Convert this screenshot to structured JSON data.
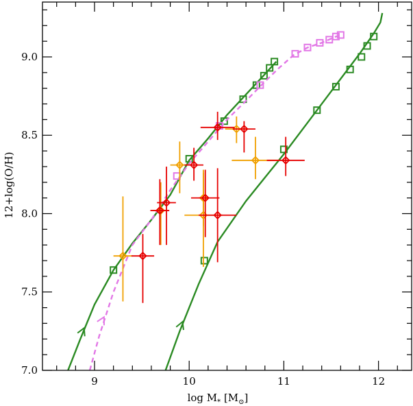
{
  "chart_data": {
    "type": "scatter",
    "title": "",
    "xlabel": "log M",
    "xlabel_sub": "*",
    "xlabel_units": "[M",
    "xlabel_units_close": "]",
    "ylabel": "12+log(O/H)",
    "xlim": [
      8.45,
      12.35
    ],
    "ylim": [
      7.0,
      9.35
    ],
    "grid": false,
    "xticks": [
      {
        "value": 9,
        "label": "9"
      },
      {
        "value": 10,
        "label": "10"
      },
      {
        "value": 11,
        "label": "11"
      },
      {
        "value": 12,
        "label": "12"
      }
    ],
    "yticks": [
      {
        "value": 7.0,
        "label": "7.0"
      },
      {
        "value": 7.5,
        "label": "7.5"
      },
      {
        "value": 8.0,
        "label": "8.0"
      },
      {
        "value": 8.5,
        "label": "8.5"
      },
      {
        "value": 9.0,
        "label": "9.0"
      }
    ],
    "colors": {
      "green": "#2a8a22",
      "violet": "#e277e6",
      "orange": "#f0a000",
      "red": "#e60000"
    },
    "tracks": [
      {
        "color": "green",
        "style": "solid",
        "curve": [
          [
            8.72,
            7.0
          ],
          [
            8.85,
            7.2
          ],
          [
            9.0,
            7.42
          ],
          [
            9.2,
            7.64
          ],
          [
            9.4,
            7.81
          ],
          [
            9.6,
            7.96
          ],
          [
            9.8,
            8.12
          ],
          [
            10.0,
            8.34
          ],
          [
            10.2,
            8.48
          ],
          [
            10.4,
            8.63
          ],
          [
            10.6,
            8.76
          ],
          [
            10.8,
            8.89
          ],
          [
            10.92,
            8.97
          ]
        ],
        "markers": [
          [
            9.2,
            7.64
          ],
          [
            10.0,
            8.35
          ],
          [
            10.37,
            8.59
          ],
          [
            10.57,
            8.73
          ],
          [
            10.71,
            8.82
          ],
          [
            10.79,
            8.88
          ],
          [
            10.85,
            8.93
          ],
          [
            10.9,
            8.97
          ]
        ],
        "arrow": {
          "at": [
            8.89,
            7.27
          ],
          "toward": [
            8.95,
            7.35
          ]
        }
      },
      {
        "color": "violet",
        "style": "dashed",
        "curve": [
          [
            8.95,
            7.0
          ],
          [
            9.05,
            7.22
          ],
          [
            9.2,
            7.5
          ],
          [
            9.4,
            7.8
          ],
          [
            9.6,
            7.96
          ],
          [
            9.8,
            8.15
          ],
          [
            10.0,
            8.32
          ],
          [
            10.2,
            8.46
          ],
          [
            10.4,
            8.6
          ],
          [
            10.6,
            8.72
          ],
          [
            10.78,
            8.83
          ],
          [
            10.95,
            8.93
          ],
          [
            11.1,
            9.01
          ],
          [
            11.25,
            9.06
          ],
          [
            11.4,
            9.09
          ],
          [
            11.55,
            9.13
          ],
          [
            11.62,
            9.14
          ]
        ],
        "markers": [
          [
            9.87,
            8.24
          ],
          [
            10.32,
            8.56
          ],
          [
            10.75,
            8.82
          ],
          [
            11.12,
            9.02
          ],
          [
            11.25,
            9.06
          ],
          [
            11.38,
            9.09
          ],
          [
            11.48,
            9.11
          ],
          [
            11.55,
            9.13
          ],
          [
            11.6,
            9.14
          ]
        ],
        "arrow": {
          "at": [
            9.1,
            7.34
          ],
          "toward": [
            9.17,
            7.42
          ]
        }
      },
      {
        "color": "green",
        "style": "solid",
        "curve": [
          [
            9.75,
            7.0
          ],
          [
            9.9,
            7.25
          ],
          [
            10.1,
            7.55
          ],
          [
            10.3,
            7.82
          ],
          [
            10.6,
            8.08
          ],
          [
            11.0,
            8.38
          ],
          [
            11.35,
            8.66
          ],
          [
            11.6,
            8.86
          ],
          [
            11.8,
            9.02
          ],
          [
            11.95,
            9.15
          ],
          [
            12.02,
            9.22
          ],
          [
            12.04,
            9.28
          ]
        ],
        "markers": [
          [
            10.16,
            7.7
          ],
          [
            11.0,
            8.41
          ],
          [
            11.35,
            8.66
          ],
          [
            11.55,
            8.81
          ],
          [
            11.7,
            8.92
          ],
          [
            11.82,
            9.0
          ],
          [
            11.88,
            9.07
          ],
          [
            11.95,
            9.13
          ]
        ],
        "arrow": {
          "at": [
            9.93,
            7.31
          ],
          "toward": [
            9.99,
            7.4
          ]
        }
      }
    ],
    "observations": [
      {
        "color": "orange",
        "x": 9.3,
        "y": 7.73,
        "xerr": 0.1,
        "yerr": [
          0.29,
          0.38
        ]
      },
      {
        "color": "orange",
        "x": 9.7,
        "y": 8.02,
        "xerr": 0.08,
        "yerr": [
          0.22,
          0.18
        ]
      },
      {
        "color": "orange",
        "x": 9.9,
        "y": 8.31,
        "xerr": 0.1,
        "yerr": [
          0.18,
          0.15
        ]
      },
      {
        "color": "orange",
        "x": 10.15,
        "y": 8.1,
        "xerr": 0.05,
        "yerr": [
          0.18,
          0.16
        ]
      },
      {
        "color": "orange",
        "x": 10.15,
        "y": 7.99,
        "xerr": 0.2,
        "yerr": [
          0.33,
          0.29
        ]
      },
      {
        "color": "orange",
        "x": 10.5,
        "y": 8.54,
        "xerr": 0.12,
        "yerr": [
          0.09,
          0.08
        ]
      },
      {
        "color": "orange",
        "x": 10.7,
        "y": 8.34,
        "xerr": 0.25,
        "yerr": [
          0.12,
          0.15
        ]
      },
      {
        "color": "red",
        "x": 9.51,
        "y": 7.73,
        "xerr": 0.12,
        "yerr": [
          0.3,
          0.14
        ]
      },
      {
        "color": "red",
        "x": 9.69,
        "y": 8.02,
        "xerr": 0.1,
        "yerr": [
          0.22,
          0.2
        ]
      },
      {
        "color": "red",
        "x": 9.76,
        "y": 8.07,
        "xerr": 0.1,
        "yerr": [
          0.27,
          0.23
        ]
      },
      {
        "color": "red",
        "x": 10.05,
        "y": 8.31,
        "xerr": 0.1,
        "yerr": [
          0.1,
          0.11
        ]
      },
      {
        "color": "red",
        "x": 10.17,
        "y": 8.1,
        "xerr": 0.15,
        "yerr": [
          0.25,
          0.18
        ]
      },
      {
        "color": "red",
        "x": 10.3,
        "y": 7.99,
        "xerr": 0.2,
        "yerr": [
          0.3,
          0.3
        ]
      },
      {
        "color": "red",
        "x": 10.3,
        "y": 8.55,
        "xerr": 0.18,
        "yerr": [
          0.08,
          0.1
        ]
      },
      {
        "color": "red",
        "x": 10.58,
        "y": 8.54,
        "xerr": 0.12,
        "yerr": [
          0.15,
          0.05
        ]
      },
      {
        "color": "red",
        "x": 11.02,
        "y": 8.34,
        "xerr": 0.2,
        "yerr": [
          0.1,
          0.15
        ]
      }
    ]
  }
}
